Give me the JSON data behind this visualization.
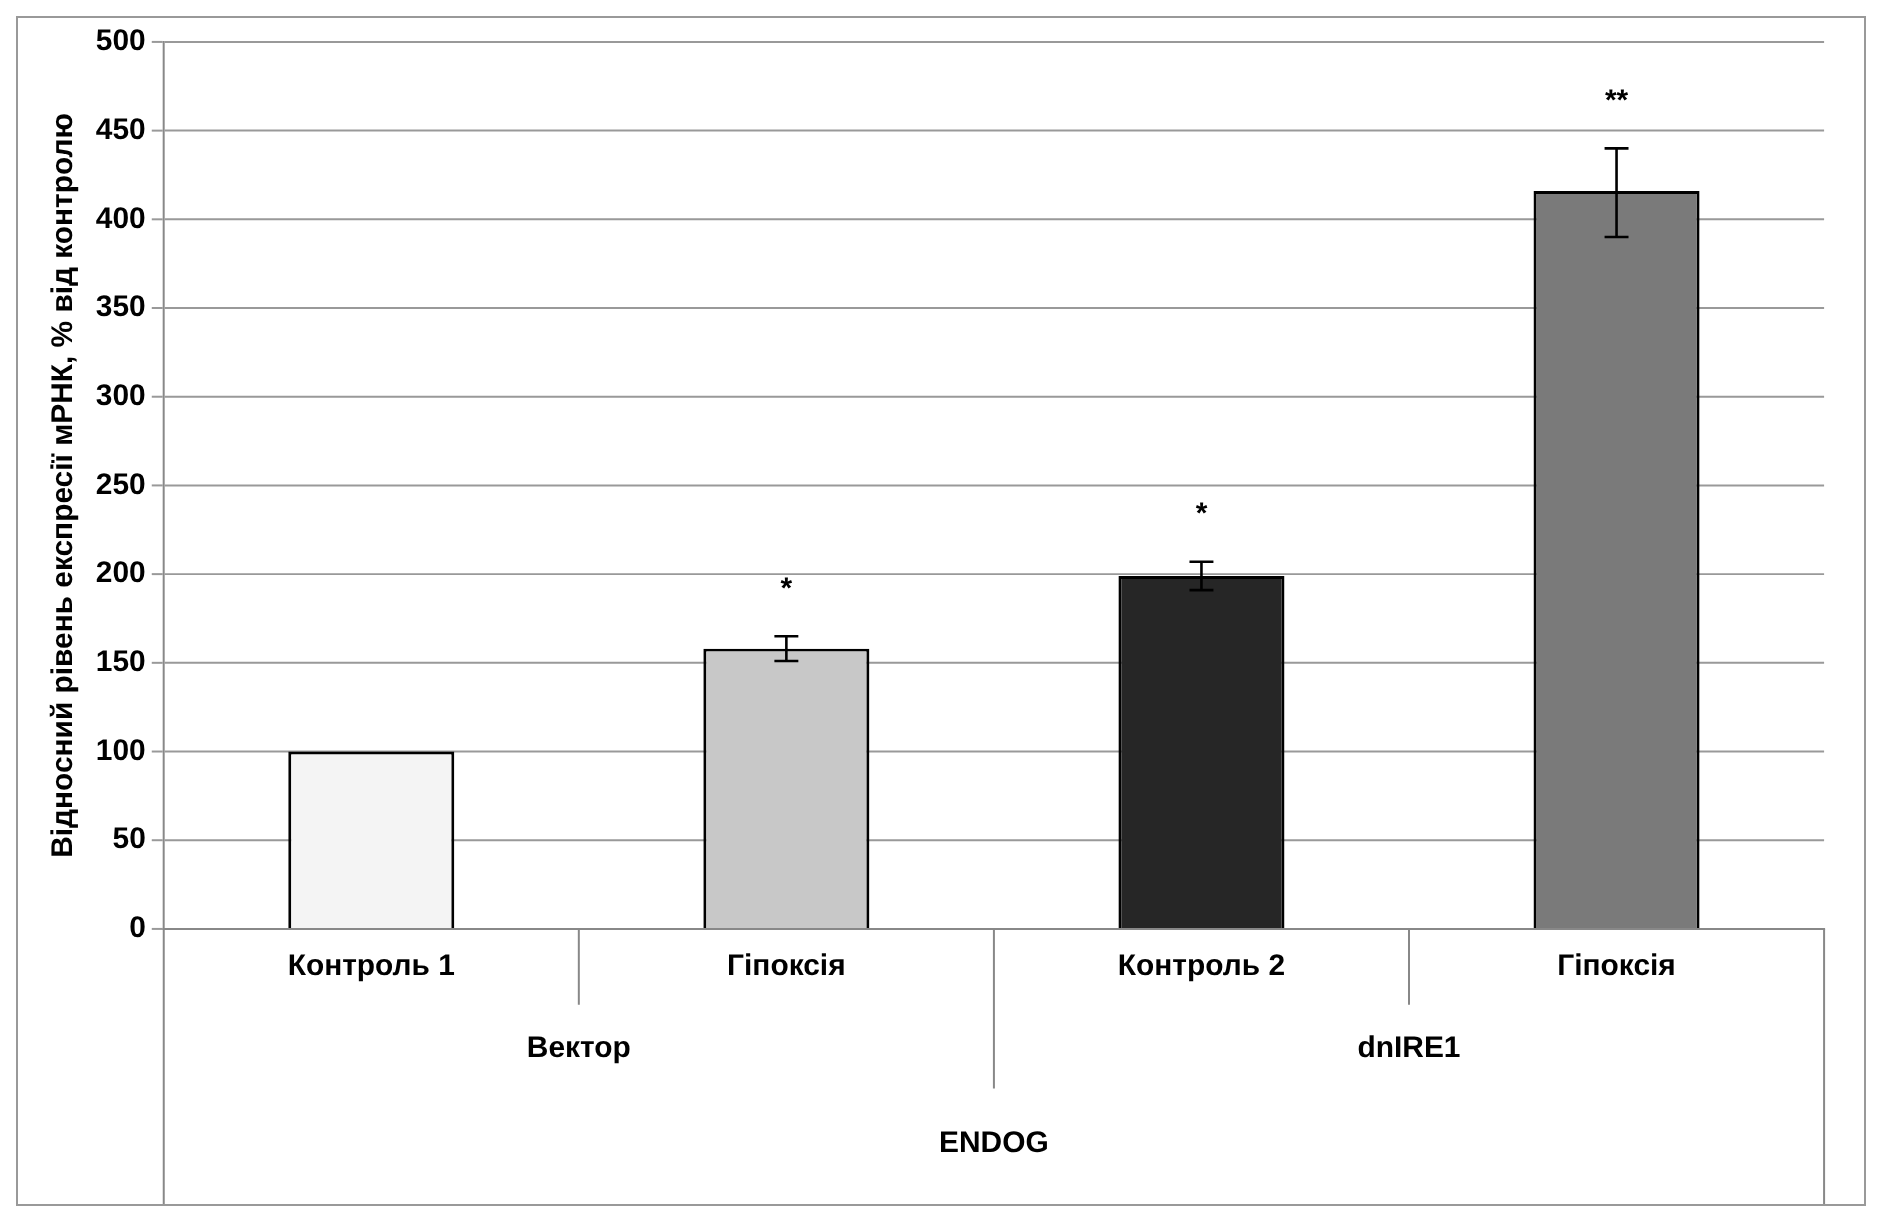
{
  "chart_data": {
    "type": "bar",
    "ylabel": "Відносний рівень експресії мРНК, % від контролю",
    "xlabel": "ENDOG",
    "categories": [
      "Контроль 1",
      "Гіпоксія",
      "Контроль 2",
      "Гіпоксія"
    ],
    "values": [
      100,
      158,
      199,
      416
    ],
    "colors": [
      "#f4f4f4",
      "#c8c8c8",
      "#262626",
      "#7a7a7a"
    ],
    "errors": [
      null,
      7,
      8,
      [
        390,
        440
      ]
    ],
    "value_labels": [
      null,
      "*",
      "*",
      "**"
    ],
    "annotations": [
      "Вектор",
      "dnIRE1"
    ],
    "ylim": [
      0,
      500
    ],
    "yticks": [
      0,
      50,
      100,
      150,
      200,
      250,
      300,
      350,
      400,
      450,
      500
    ],
    "grid": "y",
    "legend": false
  }
}
